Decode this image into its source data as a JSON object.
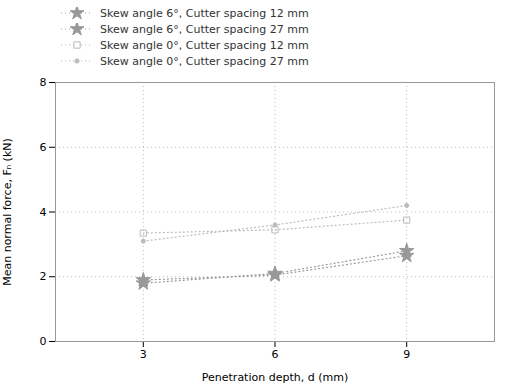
{
  "chart_data": {
    "type": "line",
    "xlabel": "Penetration depth, d (mm)",
    "ylabel": "Mean normal force, Fₙ (kN)",
    "x": [
      3,
      6,
      9
    ],
    "series": [
      {
        "name": "Skew angle 6°, Cutter spacing 12 mm",
        "color": "#999999",
        "marker": "star",
        "line_style": "dotted",
        "values": [
          1.9,
          2.05,
          2.65
        ]
      },
      {
        "name": "Skew angle 6°, Cutter spacing 27 mm",
        "color": "#999999",
        "marker": "star",
        "line_style": "dotted",
        "values": [
          1.8,
          2.1,
          2.8
        ]
      },
      {
        "name": "Skew angle 0°, Cutter spacing 12 mm",
        "color": "#bbbbbb",
        "marker": "square",
        "line_style": "dotted",
        "values": [
          3.35,
          3.45,
          3.75
        ]
      },
      {
        "name": "Skew angle 0°, Cutter spacing 27 mm",
        "color": "#bbbbbb",
        "marker": "point",
        "line_style": "dotted",
        "values": [
          3.1,
          3.6,
          4.2
        ]
      }
    ],
    "xlim": [
      1,
      11
    ],
    "ylim": [
      0,
      8
    ],
    "xticks": [
      3,
      6,
      9
    ],
    "yticks": [
      0,
      2,
      4,
      6,
      8
    ],
    "grid": true,
    "legend": "upper left"
  }
}
